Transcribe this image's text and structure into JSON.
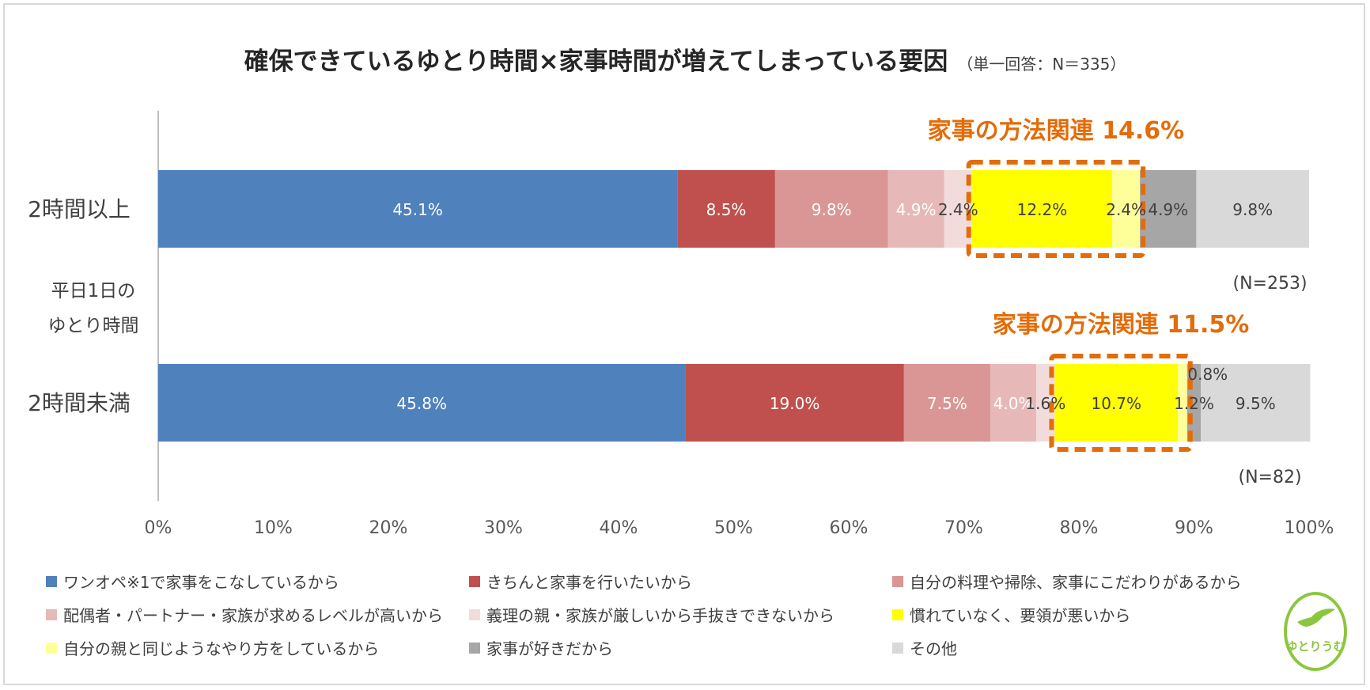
{
  "chart_data": {
    "type": "bar",
    "orientation": "horizontal",
    "stacked": true,
    "title": "確保できているゆとり時間×家事時間が増えてしまっている要因",
    "subtitle": "（単一回答：N＝335）",
    "ylabel": "平日1日のゆとり時間",
    "ylabel_lines": [
      "平日1日の",
      "ゆとり時間"
    ],
    "categories": [
      "2時間以上",
      "2時間未満"
    ],
    "sample_sizes": [
      "(N=253)",
      "(N=82)"
    ],
    "xlim": [
      0,
      100
    ],
    "xticks": [
      "0%",
      "10%",
      "20%",
      "30%",
      "40%",
      "50%",
      "60%",
      "70%",
      "80%",
      "90%",
      "100%"
    ],
    "series": [
      {
        "name": "ワンオペ※1で家事をこなしているから",
        "color": "#4f81bd",
        "label_color": "#ffffff",
        "values": [
          45.1,
          45.8
        ],
        "labels": [
          "45.1%",
          "45.8%"
        ]
      },
      {
        "name": "きちんと家事を行いたいから",
        "color": "#c0504d",
        "label_color": "#ffffff",
        "values": [
          8.5,
          19.0
        ],
        "labels": [
          "8.5%",
          "19.0%"
        ]
      },
      {
        "name": "自分の料理や掃除、家事にこだわりがあるから",
        "color": "#d99694",
        "label_color": "#ffffff",
        "values": [
          9.8,
          7.5
        ],
        "labels": [
          "9.8%",
          "7.5%"
        ]
      },
      {
        "name": "配偶者・パートナー・家族が求めるレベルが高いから",
        "color": "#e6b9b8",
        "label_color": "#ffffff",
        "values": [
          4.9,
          4.0
        ],
        "labels": [
          "4.9%",
          "4.0%"
        ]
      },
      {
        "name": "義理の親・家族が厳しいから手抜きできないから",
        "color": "#f2dcdb",
        "label_color": "#404040",
        "values": [
          2.4,
          1.6
        ],
        "labels": [
          "2.4%",
          "1.6%"
        ]
      },
      {
        "name": "慣れていなく、要領が悪いから",
        "color": "#ffff00",
        "label_color": "#404040",
        "values": [
          12.2,
          10.7
        ],
        "labels": [
          "12.2%",
          "10.7%"
        ]
      },
      {
        "name": "自分の親と同じようなやり方をしているから",
        "color": "#ffff99",
        "label_color": "#404040",
        "values": [
          2.4,
          0.8
        ],
        "labels": [
          "2.4%",
          "0.8%"
        ]
      },
      {
        "name": "家事が好きだから",
        "color": "#a6a6a6",
        "label_color": "#404040",
        "values": [
          4.9,
          1.2
        ],
        "labels": [
          "4.9%",
          "1.2%"
        ]
      },
      {
        "name": "その他",
        "color": "#d9d9d9",
        "label_color": "#404040",
        "values": [
          9.8,
          9.5
        ],
        "labels": [
          "9.8%",
          "9.5%"
        ]
      }
    ],
    "highlights": [
      {
        "label": "家事の方法関連 14.6%",
        "series": [
          5,
          6
        ],
        "color": "#e36c09"
      },
      {
        "label": "家事の方法関連 11.5%",
        "series": [
          5,
          6
        ],
        "color": "#e36c09"
      }
    ]
  },
  "logo": {
    "text": "ゆとりうむ",
    "color": "#8cc63f"
  }
}
